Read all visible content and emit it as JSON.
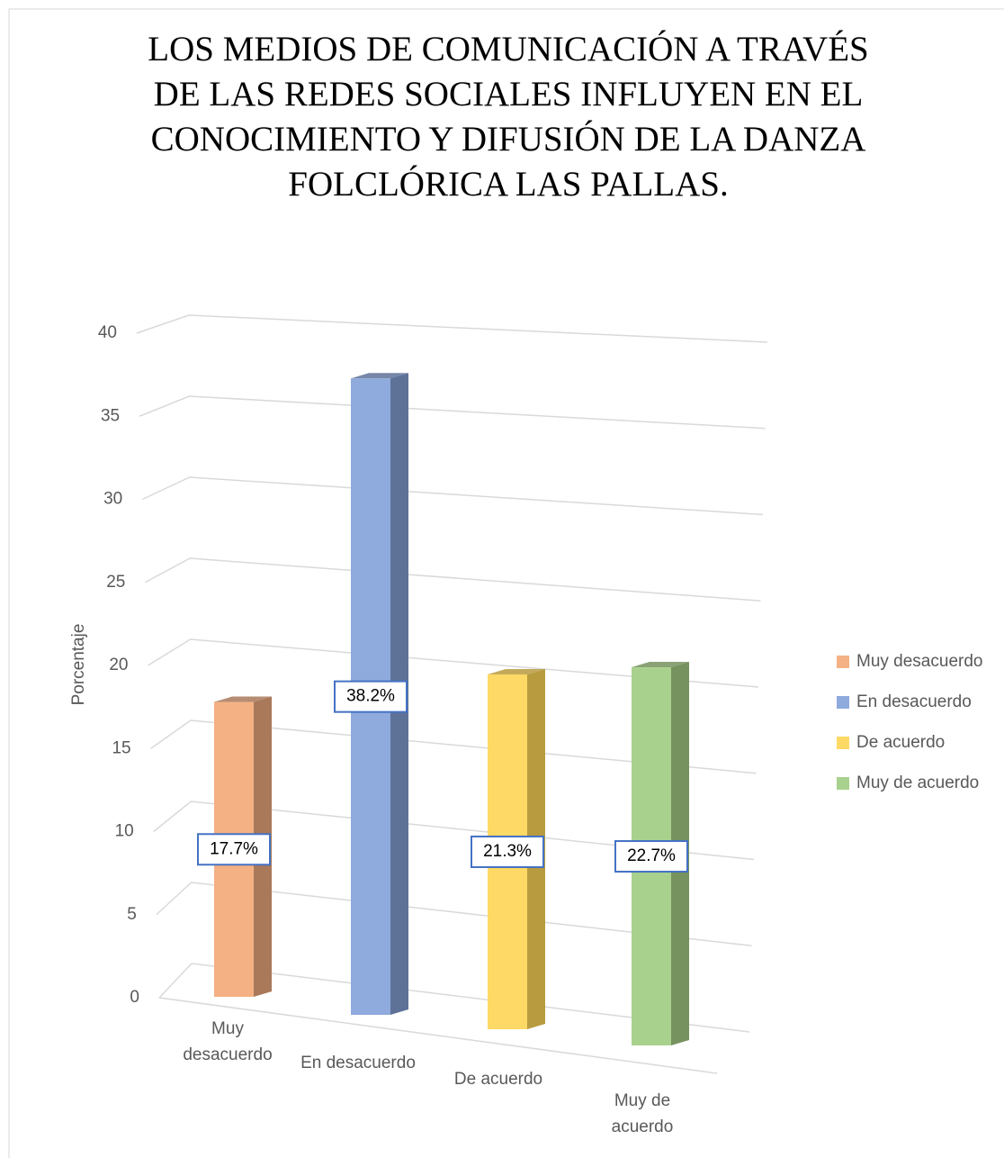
{
  "chart_data": {
    "type": "bar3d",
    "title": "LOS MEDIOS DE COMUNICACIÓN A TRAVÉS DE LAS REDES SOCIALES INFLUYEN EN EL CONOCIMIENTO Y DIFUSIÓN DE LA DANZA FOLCLÓRICA LAS PALLAS.",
    "y_label": "Porcentaje",
    "categories": [
      "Muy desacuerdo",
      "En desacuerdo",
      "De acuerdo",
      "Muy de acuerdo"
    ],
    "values": [
      17.7,
      38.2,
      21.3,
      22.7
    ],
    "value_labels": [
      "17.7%",
      "38.2%",
      "21.3%",
      "22.7%"
    ],
    "colors": [
      "#f4b183",
      "#8faadc",
      "#ffd966",
      "#a9d18e"
    ],
    "side_colors": [
      "#a9795a",
      "#5e7298",
      "#b89b3e",
      "#76925f"
    ],
    "ylim": [
      0,
      40
    ],
    "yticks": [
      0,
      5,
      10,
      15,
      20,
      25,
      30,
      35,
      40
    ],
    "grid": true,
    "legend": "right"
  }
}
